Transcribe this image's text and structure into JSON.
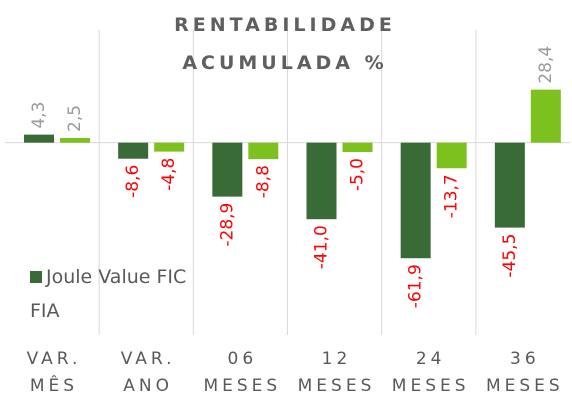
{
  "chart_data": {
    "type": "bar",
    "title": "RENTABILIDADE ACUMULADA %",
    "categories": [
      "VAR. MÊS",
      "VAR. ANO",
      "06 MESES",
      "12 MESES",
      "24 MESES",
      "36 MESES"
    ],
    "series": [
      {
        "name": "Joule Value FIC FIA",
        "color": "#386b36",
        "values": [
          4.3,
          -8.6,
          -28.9,
          -41.0,
          -61.9,
          -45.5
        ],
        "value_labels": [
          "4,3",
          "-8,6",
          "-28,9",
          "-41,0",
          "-61,9",
          "-45,5"
        ]
      },
      {
        "color": "#7dc11f",
        "values": [
          2.5,
          -4.8,
          -8.8,
          -5.0,
          -13.7,
          28.4
        ],
        "value_labels": [
          "2,5",
          "-4,8",
          "-8,8",
          "-5,0",
          "-13,7",
          "28,4"
        ]
      }
    ],
    "ylim": [
      -80,
      40
    ],
    "positive_label_color": "#9a9a9a",
    "negative_label_color": "#ff0000"
  }
}
